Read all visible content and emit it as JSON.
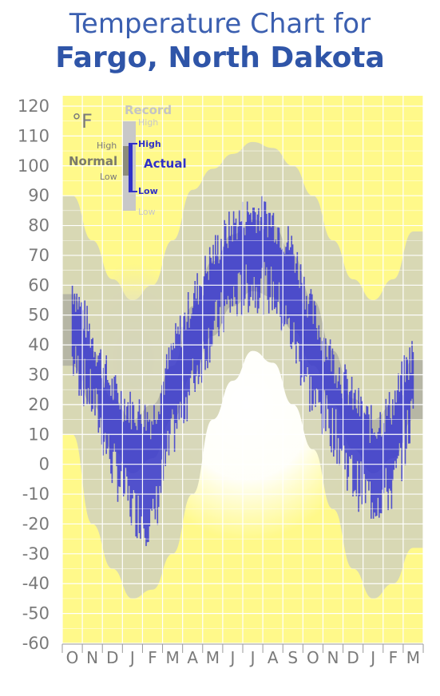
{
  "header": {
    "title_line1": "Temperature Chart for",
    "title_line2": "Fargo, North Dakota"
  },
  "colors": {
    "background_plot": "#fff98a",
    "record_band": "#d6d6b6",
    "normal_band": "#b4b4a4",
    "actual_series": "#3a3ad0",
    "grid": "#ffffff",
    "title": "#3b5fb0",
    "axis_text": "#7a7a7a"
  },
  "legend": {
    "unit_label": "°F",
    "record_label": "Record",
    "record_high": "High",
    "record_low": "Low",
    "normal_label": "Normal",
    "normal_high": "High",
    "normal_low": "Low",
    "actual_label": "Actual",
    "actual_high": "High",
    "actual_low": "Low"
  },
  "chart_data": {
    "type": "area",
    "title": "Temperature Chart for Fargo, North Dakota",
    "ylabel": "°F",
    "ylim": [
      -60,
      120
    ],
    "yticks": [
      120,
      110,
      100,
      90,
      80,
      70,
      60,
      50,
      40,
      30,
      20,
      10,
      0,
      -10,
      -20,
      -30,
      -40,
      -50,
      -60
    ],
    "x_month_labels": [
      "O",
      "N",
      "D",
      "J",
      "F",
      "M",
      "A",
      "M",
      "J",
      "J",
      "A",
      "S",
      "O",
      "N",
      "D",
      "J",
      "F",
      "M"
    ],
    "grid": true,
    "series": [
      {
        "name": "Record High",
        "values": [
          90,
          75,
          62,
          55,
          60,
          75,
          92,
          99,
          104,
          108,
          106,
          100,
          90,
          75,
          62,
          55,
          62,
          78
        ]
      },
      {
        "name": "Record Low",
        "values": [
          10,
          -20,
          -35,
          -45,
          -42,
          -30,
          -10,
          15,
          28,
          38,
          34,
          20,
          5,
          -15,
          -35,
          -45,
          -40,
          -28
        ]
      },
      {
        "name": "Normal High",
        "values": [
          57,
          38,
          22,
          15,
          20,
          33,
          53,
          68,
          77,
          82,
          80,
          70,
          55,
          38,
          22,
          15,
          20,
          35
        ]
      },
      {
        "name": "Normal Low",
        "values": [
          33,
          20,
          5,
          -3,
          2,
          15,
          30,
          43,
          53,
          58,
          56,
          45,
          33,
          20,
          5,
          -3,
          2,
          15
        ]
      },
      {
        "name": "Actual High",
        "values": [
          60,
          42,
          25,
          18,
          15,
          38,
          55,
          70,
          80,
          85,
          82,
          72,
          50,
          35,
          22,
          12,
          20,
          38
        ]
      },
      {
        "name": "Actual Low",
        "values": [
          35,
          22,
          0,
          -15,
          -20,
          10,
          28,
          45,
          55,
          60,
          58,
          42,
          22,
          12,
          -5,
          -12,
          -8,
          18
        ]
      }
    ]
  }
}
